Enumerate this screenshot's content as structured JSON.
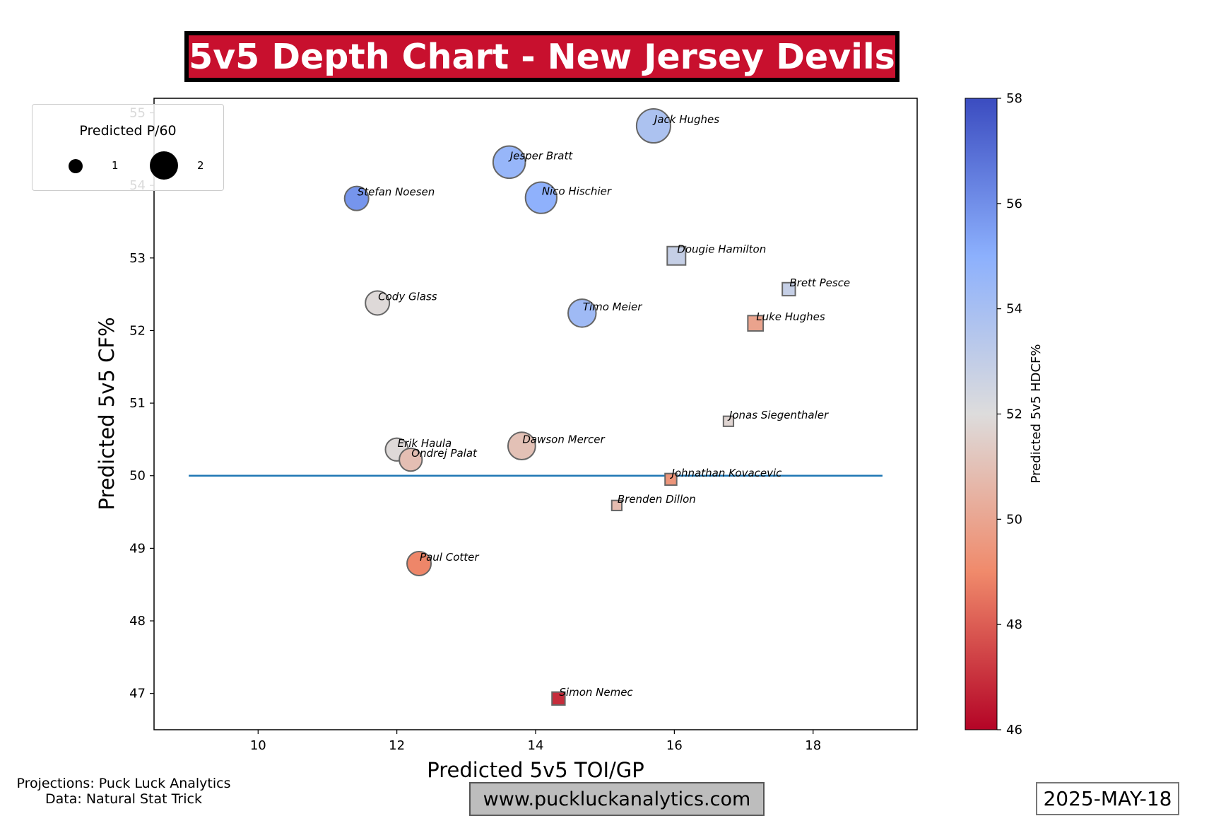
{
  "header": {
    "title": "5v5 Depth Chart - New Jersey Devils"
  },
  "colors": {
    "title_bg": "#c8102e",
    "title_border": "#000000",
    "reference_line": "#1f77b4",
    "marker_edge": "#666666"
  },
  "size_legend": {
    "title": "Predicted P/60",
    "entries": [
      {
        "label": "1",
        "value": 1
      },
      {
        "label": "2",
        "value": 2
      }
    ]
  },
  "chart_data": {
    "type": "scatter",
    "title": "5v5 Depth Chart - New Jersey Devils",
    "xlabel": "Predicted 5v5 TOI/GP",
    "ylabel": "Predicted 5v5 CF%",
    "xlim": [
      8.5,
      19.5
    ],
    "ylim": [
      46.5,
      55.2
    ],
    "x_ticks": [
      10,
      12,
      14,
      16,
      18
    ],
    "y_ticks": [
      47,
      48,
      49,
      50,
      51,
      52,
      53,
      54,
      55
    ],
    "grid": false,
    "size_encoding": "Predicted P/60",
    "color_encoding": "Predicted 5v5 HDCF%",
    "marker_encoding": {
      "circle": "forward",
      "square": "defense"
    },
    "colorbar": {
      "label": "Predicted 5v5 HDCF%",
      "range": [
        46,
        58
      ],
      "ticks": [
        46,
        48,
        50,
        52,
        54,
        56,
        58
      ],
      "colormap": "coolwarm"
    },
    "reference_line": {
      "y": 50,
      "x_from": 9,
      "x_to": 19
    },
    "points": [
      {
        "name": "Jack Hughes",
        "x": 15.7,
        "y": 54.82,
        "hdcf": 53.8,
        "p60": 2.0,
        "shape": "circle"
      },
      {
        "name": "Jesper Bratt",
        "x": 13.62,
        "y": 54.32,
        "hdcf": 54.6,
        "p60": 1.8,
        "shape": "circle"
      },
      {
        "name": "Stefan Noesen",
        "x": 11.42,
        "y": 53.82,
        "hdcf": 55.8,
        "p60": 1.0,
        "shape": "circle"
      },
      {
        "name": "Nico Hischier",
        "x": 14.08,
        "y": 53.83,
        "hdcf": 54.9,
        "p60": 1.7,
        "shape": "circle"
      },
      {
        "name": "Dougie Hamilton",
        "x": 16.03,
        "y": 53.03,
        "hdcf": 52.9,
        "p60": 1.0,
        "shape": "square"
      },
      {
        "name": "Brett Pesce",
        "x": 17.65,
        "y": 52.57,
        "hdcf": 52.9,
        "p60": 0.5,
        "shape": "square"
      },
      {
        "name": "Cody Glass",
        "x": 11.72,
        "y": 52.38,
        "hdcf": 51.9,
        "p60": 1.0,
        "shape": "circle"
      },
      {
        "name": "Timo Meier",
        "x": 14.67,
        "y": 52.24,
        "hdcf": 54.3,
        "p60": 1.35,
        "shape": "circle"
      },
      {
        "name": "Luke Hughes",
        "x": 17.17,
        "y": 52.1,
        "hdcf": 49.9,
        "p60": 0.7,
        "shape": "square"
      },
      {
        "name": "Jonas Siegenthaler",
        "x": 16.78,
        "y": 50.75,
        "hdcf": 51.7,
        "p60": 0.3,
        "shape": "square"
      },
      {
        "name": "Erik Haula",
        "x": 12.0,
        "y": 50.36,
        "hdcf": 51.9,
        "p60": 0.9,
        "shape": "circle"
      },
      {
        "name": "Dawson Mercer",
        "x": 13.8,
        "y": 50.41,
        "hdcf": 51.0,
        "p60": 1.3,
        "shape": "circle"
      },
      {
        "name": "Ondrej Palat",
        "x": 12.2,
        "y": 50.22,
        "hdcf": 50.9,
        "p60": 0.9,
        "shape": "circle"
      },
      {
        "name": "Johnathan Kovacevic",
        "x": 15.95,
        "y": 49.95,
        "hdcf": 49.4,
        "p60": 0.4,
        "shape": "square"
      },
      {
        "name": "Brenden Dillon",
        "x": 15.17,
        "y": 49.59,
        "hdcf": 50.8,
        "p60": 0.3,
        "shape": "square"
      },
      {
        "name": "Paul Cotter",
        "x": 12.32,
        "y": 48.79,
        "hdcf": 48.9,
        "p60": 1.0,
        "shape": "circle"
      },
      {
        "name": "Simon Nemec",
        "x": 14.33,
        "y": 46.93,
        "hdcf": 46.9,
        "p60": 0.5,
        "shape": "square"
      }
    ]
  },
  "footer": {
    "credits_line1": "Projections: Puck Luck Analytics",
    "credits_line2": "Data: Natural Stat Trick",
    "website": "www.puckluckanalytics.com",
    "date": "2025-MAY-18"
  }
}
